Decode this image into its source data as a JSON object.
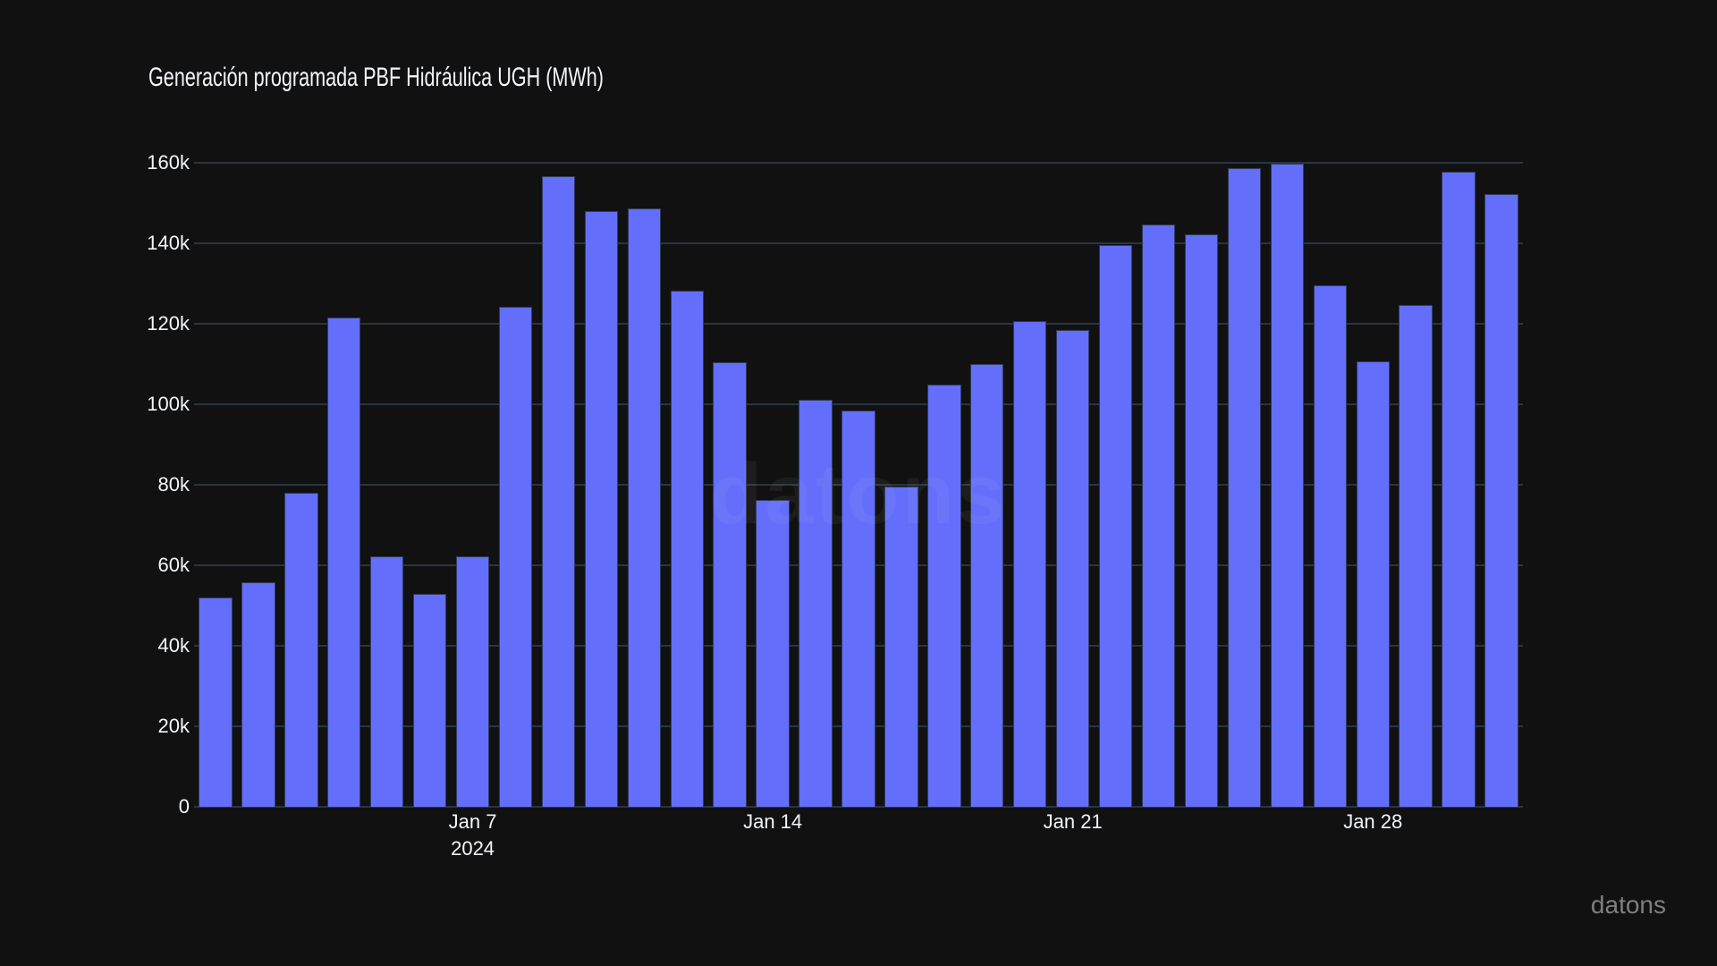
{
  "title": "Generación programada PBF Hidráulica UGH (MWh)",
  "watermarks": {
    "center": "datons",
    "corner": "datons"
  },
  "chart_data": {
    "type": "bar",
    "title": "Generación programada PBF Hidráulica UGH (MWh)",
    "xlabel": "",
    "ylabel": "",
    "x": [
      "2024-01-01",
      "2024-01-02",
      "2024-01-03",
      "2024-01-04",
      "2024-01-05",
      "2024-01-06",
      "2024-01-07",
      "2024-01-08",
      "2024-01-09",
      "2024-01-10",
      "2024-01-11",
      "2024-01-12",
      "2024-01-13",
      "2024-01-14",
      "2024-01-15",
      "2024-01-16",
      "2024-01-17",
      "2024-01-18",
      "2024-01-19",
      "2024-01-20",
      "2024-01-21",
      "2024-01-22",
      "2024-01-23",
      "2024-01-24",
      "2024-01-25",
      "2024-01-26",
      "2024-01-27",
      "2024-01-28",
      "2024-01-29",
      "2024-01-30",
      "2024-01-31"
    ],
    "values": [
      52000,
      55800,
      78000,
      121600,
      62200,
      53000,
      62300,
      124200,
      156600,
      148000,
      148600,
      128200,
      110400,
      76200,
      101200,
      98400,
      79500,
      105000,
      110000,
      120700,
      118400,
      139700,
      144700,
      142300,
      158700,
      159800,
      129600,
      110800,
      124600,
      157800,
      152300
    ],
    "ylim": [
      0,
      167600
    ],
    "ytick_step": 20000,
    "ytick_labels": [
      "0",
      "20k",
      "40k",
      "60k",
      "80k",
      "100k",
      "120k",
      "140k",
      "160k"
    ],
    "xticks": [
      {
        "day": 7,
        "label": "Jan 7",
        "sublabel": "2024"
      },
      {
        "day": 14,
        "label": "Jan 14",
        "sublabel": ""
      },
      {
        "day": 21,
        "label": "Jan 21",
        "sublabel": ""
      },
      {
        "day": 28,
        "label": "Jan 28",
        "sublabel": ""
      }
    ],
    "grid": true,
    "legend_position": "none",
    "bar_color": "#636efa",
    "grid_color": "#283442",
    "zeroline_color": "#283442",
    "text_color": "#f2f5fa",
    "background_color": "#111111"
  }
}
